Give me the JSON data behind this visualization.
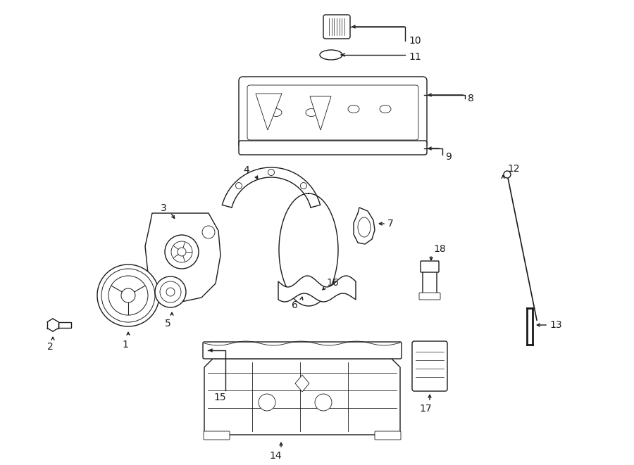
{
  "bg_color": "#ffffff",
  "line_color": "#1a1a1a",
  "figsize": [
    9.0,
    6.61
  ],
  "dpi": 100
}
